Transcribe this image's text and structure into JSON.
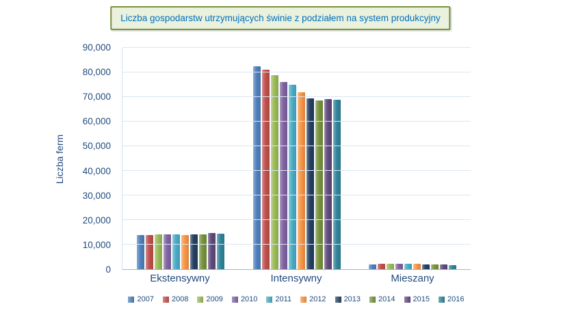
{
  "chart_data": {
    "type": "bar",
    "title": "Liczba gospodarstw utrzymujących świnie z podziałem na system produkcyjny",
    "xlabel": "",
    "ylabel": "Liczba ferm",
    "categories": [
      "Ekstensywny",
      "Intensywny",
      "Mieszany"
    ],
    "series": [
      {
        "name": "2007",
        "color": "#4F81BD",
        "values": [
          14000,
          82500,
          2000
        ]
      },
      {
        "name": "2008",
        "color": "#C0504D",
        "values": [
          14000,
          81000,
          2100
        ]
      },
      {
        "name": "2009",
        "color": "#9BBB59",
        "values": [
          14200,
          79000,
          2100
        ]
      },
      {
        "name": "2010",
        "color": "#8064A2",
        "values": [
          14200,
          76000,
          2100
        ]
      },
      {
        "name": "2011",
        "color": "#4BACC6",
        "values": [
          14200,
          75000,
          2200
        ]
      },
      {
        "name": "2012",
        "color": "#F79646",
        "values": [
          14000,
          72000,
          2100
        ]
      },
      {
        "name": "2013",
        "color": "#254061",
        "values": [
          14200,
          69500,
          2000
        ]
      },
      {
        "name": "2014",
        "color": "#77933C",
        "values": [
          14300,
          68700,
          1900
        ]
      },
      {
        "name": "2015",
        "color": "#604A7B",
        "values": [
          14600,
          69200,
          1900
        ]
      },
      {
        "name": "2016",
        "color": "#31859B",
        "values": [
          14500,
          69000,
          1800
        ]
      }
    ],
    "ylim": [
      0,
      90000
    ],
    "yticks": [
      "0",
      "10,000",
      "20,000",
      "30,000",
      "40,000",
      "50,000",
      "60,000",
      "70,000",
      "80,000",
      "90,000"
    ],
    "grid": true,
    "legend_position": "bottom"
  },
  "colors": {
    "title_text": "#0070C0",
    "title_background": "#EAF1DD",
    "title_border": "#77933C",
    "axis_text": "#1F497D",
    "gridline": "#D9E5F2"
  }
}
